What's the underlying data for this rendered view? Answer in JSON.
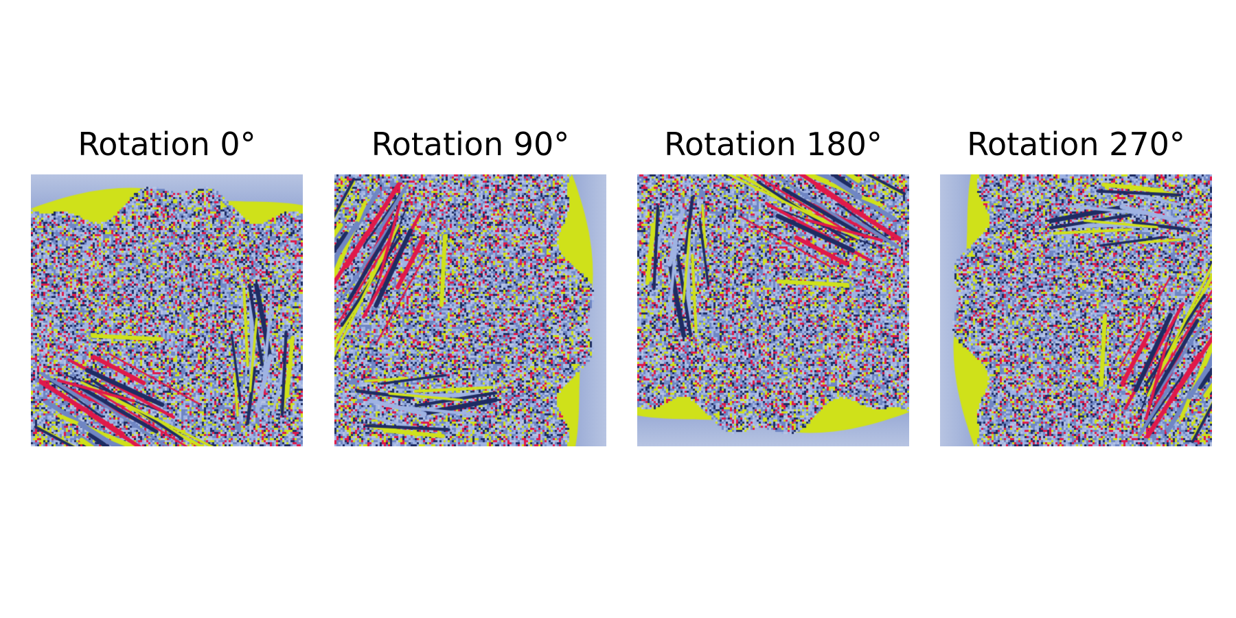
{
  "figure": {
    "panels": [
      {
        "title": "Rotation 0°",
        "rotation": 0
      },
      {
        "title": "Rotation 90°",
        "rotation": 90
      },
      {
        "title": "Rotation 180°",
        "rotation": 180
      },
      {
        "title": "Rotation 270°",
        "rotation": 270
      }
    ]
  },
  "palette": {
    "light_blue": "#9fb3e3",
    "mid_blue": "#6f86c4",
    "dark_navy": "#1e2c63",
    "yellow_green": "#cfe11a",
    "red": "#e0194a",
    "grey_blue": "#b7c4e2"
  }
}
